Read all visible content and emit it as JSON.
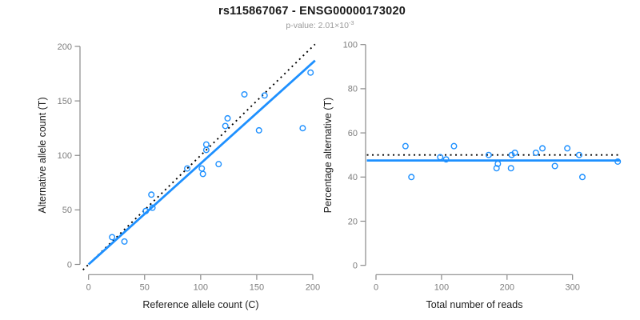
{
  "figure": {
    "title": "rs115867067 - ENSG00000173020",
    "subtitle_prefix": "p-value: 2.01×10",
    "subtitle_exponent": "-3",
    "colors": {
      "accent_blue": "#1E90FF",
      "identity_black": "#000000",
      "axis_gray": "#8a8a8a",
      "tick_text_gray": "#7d7d7d",
      "axis_title_dark": "#1c1c1c"
    }
  },
  "chart_data": [
    {
      "type": "scatter",
      "panel": "left",
      "xlabel": "Reference allele count (C)",
      "ylabel": "Alternative allele count (T)",
      "xlim": [
        0,
        200
      ],
      "ylim": [
        0,
        200
      ],
      "xticks": [
        0,
        50,
        100,
        150,
        200
      ],
      "yticks": [
        0,
        50,
        100,
        150,
        200
      ],
      "grid": false,
      "legend": "none",
      "points": [
        [
          21,
          25
        ],
        [
          32,
          21
        ],
        [
          51,
          49
        ],
        [
          57,
          52
        ],
        [
          56,
          64
        ],
        [
          88,
          88
        ],
        [
          101,
          88
        ],
        [
          102,
          83
        ],
        [
          105,
          105
        ],
        [
          105,
          110
        ],
        [
          116,
          92
        ],
        [
          122,
          127
        ],
        [
          124,
          134
        ],
        [
          139,
          156
        ],
        [
          152,
          123
        ],
        [
          157,
          155
        ],
        [
          191,
          125
        ],
        [
          198,
          176
        ]
      ],
      "lines": [
        {
          "name": "identity",
          "style": "dotted",
          "color_key": "identity_black",
          "width": 1.9,
          "from": [
            -5,
            -5
          ],
          "to": [
            202,
            202
          ]
        },
        {
          "name": "fit",
          "style": "solid",
          "color_key": "accent_blue",
          "width": 2.8,
          "from": [
            0,
            0
          ],
          "to": [
            202,
            187
          ]
        }
      ]
    },
    {
      "type": "scatter",
      "panel": "right",
      "xlabel": "Total number of reads",
      "ylabel": "Percentage alternative (T)",
      "xlim": [
        0,
        300
      ],
      "ylim": [
        0,
        100
      ],
      "xticks": [
        0,
        100,
        200,
        300
      ],
      "yticks": [
        0,
        20,
        40,
        60,
        80,
        100
      ],
      "grid": false,
      "legend": "none",
      "points": [
        [
          45,
          54
        ],
        [
          54,
          40
        ],
        [
          98,
          49
        ],
        [
          107,
          48
        ],
        [
          119,
          54
        ],
        [
          172,
          50
        ],
        [
          186,
          46
        ],
        [
          184,
          44
        ],
        [
          206,
          44
        ],
        [
          207,
          50
        ],
        [
          212,
          51
        ],
        [
          244,
          51
        ],
        [
          254,
          53
        ],
        [
          273,
          45
        ],
        [
          292,
          53
        ],
        [
          310,
          50
        ],
        [
          315,
          40
        ],
        [
          369,
          47
        ]
      ],
      "lines": [
        {
          "name": "expected-50pct",
          "style": "dotted",
          "color_key": "identity_black",
          "width": 1.9,
          "from": [
            -14,
            50
          ],
          "to": [
            372,
            50
          ]
        },
        {
          "name": "fit",
          "style": "solid",
          "color_key": "accent_blue",
          "width": 2.8,
          "from": [
            -14,
            47.5
          ],
          "to": [
            372,
            47.5
          ]
        }
      ]
    }
  ]
}
